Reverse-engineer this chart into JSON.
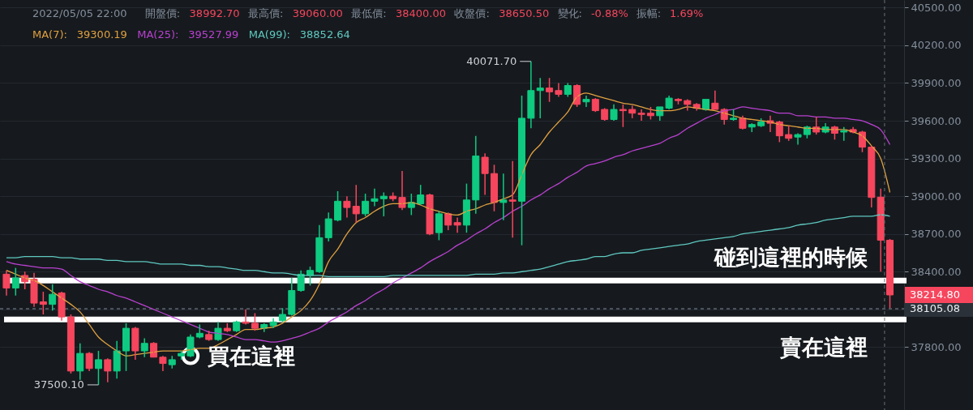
{
  "chart_data": {
    "type": "candlestick",
    "categories": [
      null,
      null,
      null,
      null,
      null,
      null,
      null,
      null,
      null,
      null,
      null,
      null,
      null,
      null,
      null,
      null,
      null,
      null,
      null,
      null,
      null,
      null,
      null,
      null,
      null,
      null,
      null,
      null,
      null,
      null,
      null,
      null,
      null,
      null,
      null,
      null,
      null,
      null,
      null,
      null,
      null,
      null,
      null,
      null,
      null,
      null,
      null,
      null,
      null,
      null,
      null,
      null,
      null,
      null,
      null,
      null,
      null,
      null,
      null,
      null,
      null,
      null,
      null,
      null,
      null,
      null,
      null,
      null,
      null,
      null,
      null,
      null,
      null,
      null,
      null,
      null,
      null,
      null,
      null,
      null,
      null,
      null,
      null,
      null,
      null,
      null,
      null,
      null,
      null,
      null,
      null,
      null,
      null,
      null,
      null,
      null,
      null
    ],
    "ohlc": [
      [
        38380,
        38410,
        38210,
        38270
      ],
      [
        38270,
        38430,
        38210,
        38350
      ],
      [
        38370,
        38400,
        38260,
        38320
      ],
      [
        38340,
        38390,
        38120,
        38150
      ],
      [
        38160,
        38240,
        38060,
        38140
      ],
      [
        38140,
        38300,
        38090,
        38220
      ],
      [
        38230,
        38240,
        38010,
        38040
      ],
      [
        38040,
        38060,
        37590,
        37610
      ],
      [
        37610,
        37830,
        37540,
        37750
      ],
      [
        37750,
        37760,
        37610,
        37630
      ],
      [
        37630,
        37770,
        37500.1,
        37700
      ],
      [
        37700,
        37710,
        37520,
        37610
      ],
      [
        37610,
        37850,
        37550,
        37770
      ],
      [
        37770,
        37990,
        37610,
        37950
      ],
      [
        37950,
        37960,
        37700,
        37770
      ],
      [
        37770,
        37870,
        37720,
        37830
      ],
      [
        37830,
        37840,
        37720,
        37720
      ],
      [
        37720,
        37730,
        37610,
        37670
      ],
      [
        37660,
        37730,
        37630,
        37700
      ],
      [
        37730,
        37770,
        37700,
        37750
      ],
      [
        37730,
        37900,
        37720,
        37880
      ],
      [
        37880,
        37980,
        37870,
        37910
      ],
      [
        37900,
        37930,
        37850,
        37860
      ],
      [
        37860,
        38000,
        37850,
        37950
      ],
      [
        37950,
        37990,
        37920,
        37930
      ],
      [
        37930,
        38010,
        37920,
        38000
      ],
      [
        38000,
        38100,
        37980,
        37990
      ],
      [
        37990,
        38070,
        37930,
        37950
      ],
      [
        37950,
        37990,
        37920,
        37980
      ],
      [
        37970,
        38030,
        37950,
        38000
      ],
      [
        38010,
        38110,
        38000,
        38060
      ],
      [
        38060,
        38350,
        38050,
        38250
      ],
      [
        38250,
        38410,
        38240,
        38380
      ],
      [
        38370,
        38440,
        38290,
        38410
      ],
      [
        38400,
        38770,
        38390,
        38670
      ],
      [
        38670,
        38870,
        38640,
        38820
      ],
      [
        38810,
        39040,
        38800,
        38960
      ],
      [
        38960,
        39000,
        38830,
        38910
      ],
      [
        38920,
        39090,
        38790,
        38860
      ],
      [
        38860,
        39020,
        38840,
        38960
      ],
      [
        38960,
        39060,
        38920,
        38980
      ],
      [
        38980,
        39030,
        38840,
        39000
      ],
      [
        39000,
        39030,
        38960,
        38980
      ],
      [
        38990,
        39200,
        38890,
        38910
      ],
      [
        38910,
        39020,
        38850,
        38950
      ],
      [
        38940,
        39090,
        38930,
        39010
      ],
      [
        39010,
        39020,
        38690,
        38700
      ],
      [
        38710,
        38880,
        38650,
        38860
      ],
      [
        38860,
        38870,
        38730,
        38770
      ],
      [
        38790,
        38830,
        38710,
        38770
      ],
      [
        38770,
        39100,
        38710,
        38970
      ],
      [
        38970,
        39480,
        38860,
        39320
      ],
      [
        39310,
        39340,
        39010,
        39180
      ],
      [
        39180,
        39250,
        38880,
        38950
      ],
      [
        38950,
        39180,
        38810,
        38970
      ],
      [
        38970,
        39280,
        38670,
        38960
      ],
      [
        38960,
        39800,
        38610,
        39620
      ],
      [
        39620,
        40071.7,
        39540,
        39840
      ],
      [
        39840,
        39940,
        39620,
        39860
      ],
      [
        39860,
        39940,
        39750,
        39830
      ],
      [
        39840,
        39900,
        39790,
        39810
      ],
      [
        39810,
        39900,
        39790,
        39880
      ],
      [
        39880,
        39890,
        39710,
        39730
      ],
      [
        39750,
        39800,
        39710,
        39770
      ],
      [
        39770,
        39780,
        39670,
        39680
      ],
      [
        39690,
        39700,
        39600,
        39610
      ],
      [
        39610,
        39730,
        39600,
        39690
      ],
      [
        39690,
        39730,
        39550,
        39680
      ],
      [
        39690,
        39720,
        39620,
        39660
      ],
      [
        39660,
        39690,
        39600,
        39650
      ],
      [
        39660,
        39710,
        39610,
        39640
      ],
      [
        39640,
        39710,
        39600,
        39710
      ],
      [
        39700,
        39800,
        39690,
        39780
      ],
      [
        39770,
        39780,
        39730,
        39760
      ],
      [
        39760,
        39770,
        39680,
        39730
      ],
      [
        39730,
        39740,
        39680,
        39700
      ],
      [
        39690,
        39770,
        39680,
        39770
      ],
      [
        39740,
        39840,
        39690,
        39690
      ],
      [
        39690,
        39700,
        39570,
        39610
      ],
      [
        39610,
        39690,
        39600,
        39620
      ],
      [
        39620,
        39640,
        39530,
        39540
      ],
      [
        39550,
        39580,
        39510,
        39570
      ],
      [
        39560,
        39620,
        39550,
        39590
      ],
      [
        39600,
        39640,
        39510,
        39580
      ],
      [
        39590,
        39600,
        39430,
        39480
      ],
      [
        39490,
        39560,
        39440,
        39460
      ],
      [
        39470,
        39500,
        39410,
        39490
      ],
      [
        39490,
        39560,
        39460,
        39550
      ],
      [
        39550,
        39630,
        39490,
        39510
      ],
      [
        39510,
        39580,
        39500,
        39550
      ],
      [
        39550,
        39560,
        39450,
        39500
      ],
      [
        39510,
        39550,
        39440,
        39520
      ],
      [
        39530,
        39550,
        39500,
        39510
      ],
      [
        39510,
        39520,
        39350,
        39390
      ],
      [
        39390,
        39400,
        38910,
        38990
      ],
      [
        38992.7,
        39060.0,
        38400.0,
        38650.5
      ],
      [
        38650,
        38660,
        38110,
        38214.8
      ]
    ],
    "colors": [
      "#f6465d",
      "#0ecb81",
      "#f6465d",
      "#f6465d",
      "#f6465d",
      "#0ecb81",
      "#f6465d",
      "#f6465d",
      "#0ecb81",
      "#f6465d",
      "#0ecb81",
      "#f6465d",
      "#0ecb81",
      "#0ecb81",
      "#f6465d",
      "#0ecb81",
      "#f6465d",
      "#f6465d",
      "#0ecb81",
      "#0ecb81",
      "#0ecb81",
      "#0ecb81",
      "#f6465d",
      "#0ecb81",
      "#f6465d",
      "#0ecb81",
      "#f6465d",
      "#f6465d",
      "#0ecb81",
      "#0ecb81",
      "#0ecb81",
      "#0ecb81",
      "#0ecb81",
      "#0ecb81",
      "#0ecb81",
      "#0ecb81",
      "#0ecb81",
      "#f6465d",
      "#f6465d",
      "#0ecb81",
      "#0ecb81",
      "#0ecb81",
      "#f6465d",
      "#f6465d",
      "#0ecb81",
      "#0ecb81",
      "#f6465d",
      "#0ecb81",
      "#f6465d",
      "#f6465d",
      "#0ecb81",
      "#0ecb81",
      "#f6465d",
      "#f6465d",
      "#0ecb81",
      "#f6465d",
      "#0ecb81",
      "#0ecb81",
      "#0ecb81",
      "#f6465d",
      "#f6465d",
      "#0ecb81",
      "#f6465d",
      "#0ecb81",
      "#f6465d",
      "#f6465d",
      "#0ecb81",
      "#f6465d",
      "#f6465d",
      "#f6465d",
      "#f6465d",
      "#0ecb81",
      "#0ecb81",
      "#f6465d",
      "#f6465d",
      "#f6465d",
      "#0ecb81",
      "#f6465d",
      "#f6465d",
      "#0ecb81",
      "#f6465d",
      "#0ecb81",
      "#0ecb81",
      "#f6465d",
      "#f6465d",
      "#f6465d",
      "#0ecb81",
      "#0ecb81",
      "#f6465d",
      "#0ecb81",
      "#f6465d",
      "#0ecb81",
      "#f6465d",
      "#f6465d",
      "#f6465d",
      "#f6465d",
      "#f6465d"
    ],
    "series": [
      {
        "name": "MA(7):",
        "type": "line",
        "color": "#e0a040",
        "values": [
          38410,
          38380,
          38350,
          38330,
          38290,
          38240,
          38190,
          38140,
          38080,
          37980,
          37880,
          37820,
          37770,
          37730,
          37740,
          37750,
          37760,
          37770,
          37770,
          37770,
          37780,
          37790,
          37790,
          37820,
          37860,
          37900,
          37940,
          37940,
          37950,
          37960,
          37990,
          38040,
          38090,
          38170,
          38300,
          38480,
          38580,
          38700,
          38790,
          38830,
          38880,
          38920,
          38940,
          38940,
          38950,
          38930,
          38900,
          38880,
          38860,
          38850,
          38880,
          38900,
          38930,
          38950,
          38980,
          39010,
          39170,
          39330,
          39410,
          39510,
          39590,
          39670,
          39790,
          39820,
          39800,
          39780,
          39760,
          39740,
          39730,
          39710,
          39690,
          39680,
          39680,
          39690,
          39710,
          39700,
          39690,
          39680,
          39660,
          39640,
          39620,
          39610,
          39600,
          39590,
          39570,
          39560,
          39550,
          39540,
          39540,
          39530,
          39530,
          39530,
          39510,
          39480,
          39400,
          39300.19,
          39030
        ]
      },
      {
        "name": "MA(25):",
        "type": "line",
        "color": "#b940d0",
        "values": [
          38480,
          38460,
          38450,
          38440,
          38430,
          38430,
          38420,
          38370,
          38320,
          38290,
          38260,
          38240,
          38210,
          38190,
          38160,
          38130,
          38100,
          38070,
          38040,
          38010,
          37980,
          37950,
          37920,
          37910,
          37900,
          37880,
          37860,
          37860,
          37850,
          37840,
          37850,
          37870,
          37890,
          37920,
          37950,
          38000,
          38040,
          38080,
          38130,
          38170,
          38220,
          38260,
          38310,
          38350,
          38390,
          38430,
          38480,
          38520,
          38560,
          38610,
          38650,
          38700,
          38740,
          38790,
          38830,
          38880,
          38920,
          38970,
          39010,
          39060,
          39100,
          39150,
          39190,
          39240,
          39260,
          39280,
          39310,
          39330,
          39360,
          39380,
          39400,
          39420,
          39460,
          39490,
          39540,
          39580,
          39620,
          39650,
          39680,
          39690,
          39710,
          39700,
          39690,
          39680,
          39660,
          39660,
          39640,
          39640,
          39630,
          39630,
          39620,
          39620,
          39610,
          39600,
          39570,
          39527.99,
          39410
        ]
      },
      {
        "name": "MA(99):",
        "type": "line",
        "color": "#5fc8c0",
        "values": [
          38510,
          38510,
          38520,
          38520,
          38520,
          38520,
          38510,
          38510,
          38500,
          38500,
          38500,
          38490,
          38490,
          38480,
          38480,
          38480,
          38470,
          38460,
          38460,
          38460,
          38450,
          38450,
          38440,
          38440,
          38430,
          38420,
          38410,
          38410,
          38400,
          38390,
          38390,
          38380,
          38370,
          38370,
          38370,
          38360,
          38360,
          38360,
          38360,
          38360,
          38360,
          38360,
          38370,
          38370,
          38370,
          38370,
          38370,
          38370,
          38370,
          38370,
          38370,
          38380,
          38380,
          38380,
          38390,
          38390,
          38400,
          38410,
          38420,
          38440,
          38460,
          38480,
          38490,
          38500,
          38520,
          38520,
          38540,
          38550,
          38550,
          38570,
          38580,
          38590,
          38600,
          38610,
          38620,
          38640,
          38650,
          38660,
          38670,
          38680,
          38700,
          38710,
          38720,
          38730,
          38740,
          38750,
          38770,
          38780,
          38790,
          38810,
          38820,
          38830,
          38840,
          38840,
          38840,
          38852.64,
          38840
        ]
      },
      {
        "type": "scatter",
        "color": "#ffffff",
        "marker": "circle",
        "values": [
          null,
          null,
          null,
          null,
          null,
          null,
          null,
          null,
          null,
          null,
          null,
          null,
          null,
          null,
          null,
          null,
          null,
          null,
          null,
          null,
          37730,
          null,
          null,
          null,
          null,
          null,
          null,
          null,
          null,
          null,
          null,
          null,
          null,
          null,
          null,
          null,
          null,
          null,
          null,
          null,
          null,
          null,
          null,
          null,
          null,
          null,
          null,
          null,
          null,
          null,
          null,
          null,
          null,
          null,
          null,
          null,
          null,
          null,
          null,
          null,
          null,
          null,
          null,
          null,
          null,
          null,
          null,
          null,
          null,
          null,
          null,
          null,
          null,
          null,
          null,
          null,
          null,
          null,
          null,
          null,
          null,
          null,
          null,
          null,
          null,
          null,
          null,
          null,
          null,
          null,
          null,
          null,
          null,
          null,
          null,
          null,
          null
        ]
      }
    ],
    "ylim": [
      37300,
      40560
    ],
    "yticks": [
      {
        "value": 37800,
        "label": "37800.00"
      },
      {
        "value": 38100,
        "label": null
      },
      {
        "value": 38400,
        "label": "38400.00"
      },
      {
        "value": 38700,
        "label": "38700.00"
      },
      {
        "value": 39000,
        "label": "39000.00"
      },
      {
        "value": 39300,
        "label": "39300.00"
      },
      {
        "value": 39600,
        "label": "39600.00"
      },
      {
        "value": 39900,
        "label": "39900.00"
      },
      {
        "value": 40200,
        "label": "40200.00"
      },
      {
        "value": 40500,
        "label": "40500.00"
      }
    ],
    "grid": "y",
    "legend": "top left",
    "ref_lines": [
      {
        "axis": "y",
        "value": 38330,
        "label": "碰到這裡的時候",
        "color": "#ffffff"
      },
      {
        "axis": "y",
        "value": 38020,
        "label": "賣在這裡",
        "color": "#ffffff"
      },
      {
        "axis": "y",
        "value": 38105.08,
        "label": "38105.08",
        "color": "#848e9c",
        "line_style": "dashed"
      }
    ],
    "annotations": [
      "2022/05/05 22:00",
      "開盤價:",
      "38992.70",
      "最高價:",
      "39060.00",
      "最低價:",
      "38400.00",
      "收盤價:",
      "38650.50",
      "變化:",
      "-0.88%",
      "振幅:",
      "1.69%",
      "39300.19",
      "39527.99",
      "38852.64",
      "40071.70",
      "37500.10",
      "買在這裡",
      "38214.80"
    ]
  }
}
